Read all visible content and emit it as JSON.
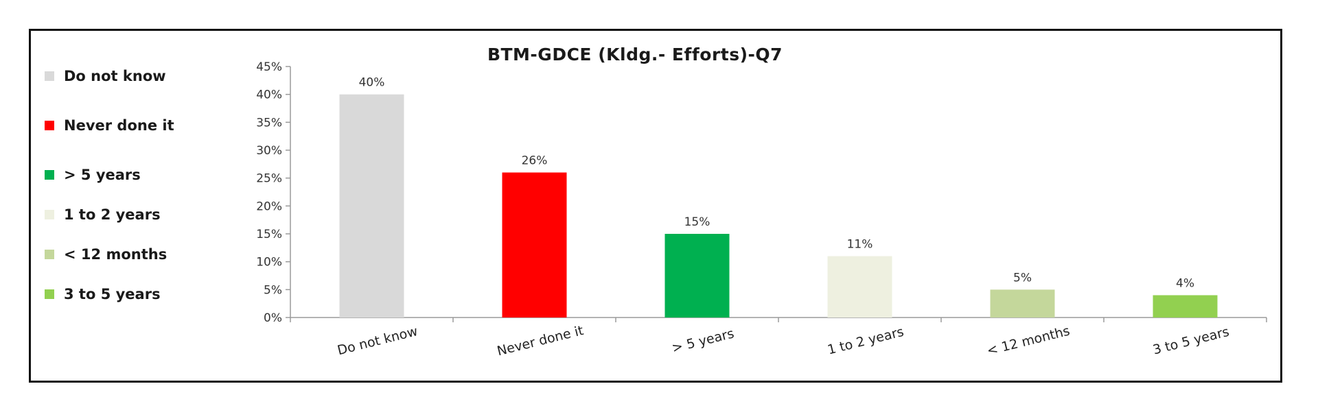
{
  "chart_data": {
    "type": "bar",
    "title": "BTM-GDCE (Kldg.- Efforts)-Q7",
    "categories": [
      "Do not know",
      "Never done it",
      "> 5 years",
      "1 to 2 years",
      "< 12 months",
      "3 to 5 years"
    ],
    "values": [
      40,
      26,
      15,
      11,
      5,
      4
    ],
    "value_labels": [
      "40%",
      "26%",
      "15%",
      "11%",
      "5%",
      "4%"
    ],
    "colors": [
      "#d9d9d9",
      "#ff0000",
      "#00b050",
      "#eef0e0",
      "#c4d79b",
      "#92d050"
    ],
    "ylim": [
      0,
      45
    ],
    "yticks": [
      "0%",
      "5%",
      "10%",
      "15%",
      "20%",
      "25%",
      "30%",
      "35%",
      "40%",
      "45%"
    ],
    "xlabel": "",
    "ylabel": "",
    "grid": false,
    "legend": {
      "position": "left",
      "entries": [
        {
          "label": "Do not know",
          "color": "#d9d9d9"
        },
        {
          "label": "Never done it",
          "color": "#ff0000"
        },
        {
          "label": "> 5 years",
          "color": "#00b050"
        },
        {
          "label": "1 to 2 years",
          "color": "#eef0e0"
        },
        {
          "label": "< 12 months",
          "color": "#c4d79b"
        },
        {
          "label": "3 to 5 years",
          "color": "#92d050"
        }
      ]
    }
  }
}
